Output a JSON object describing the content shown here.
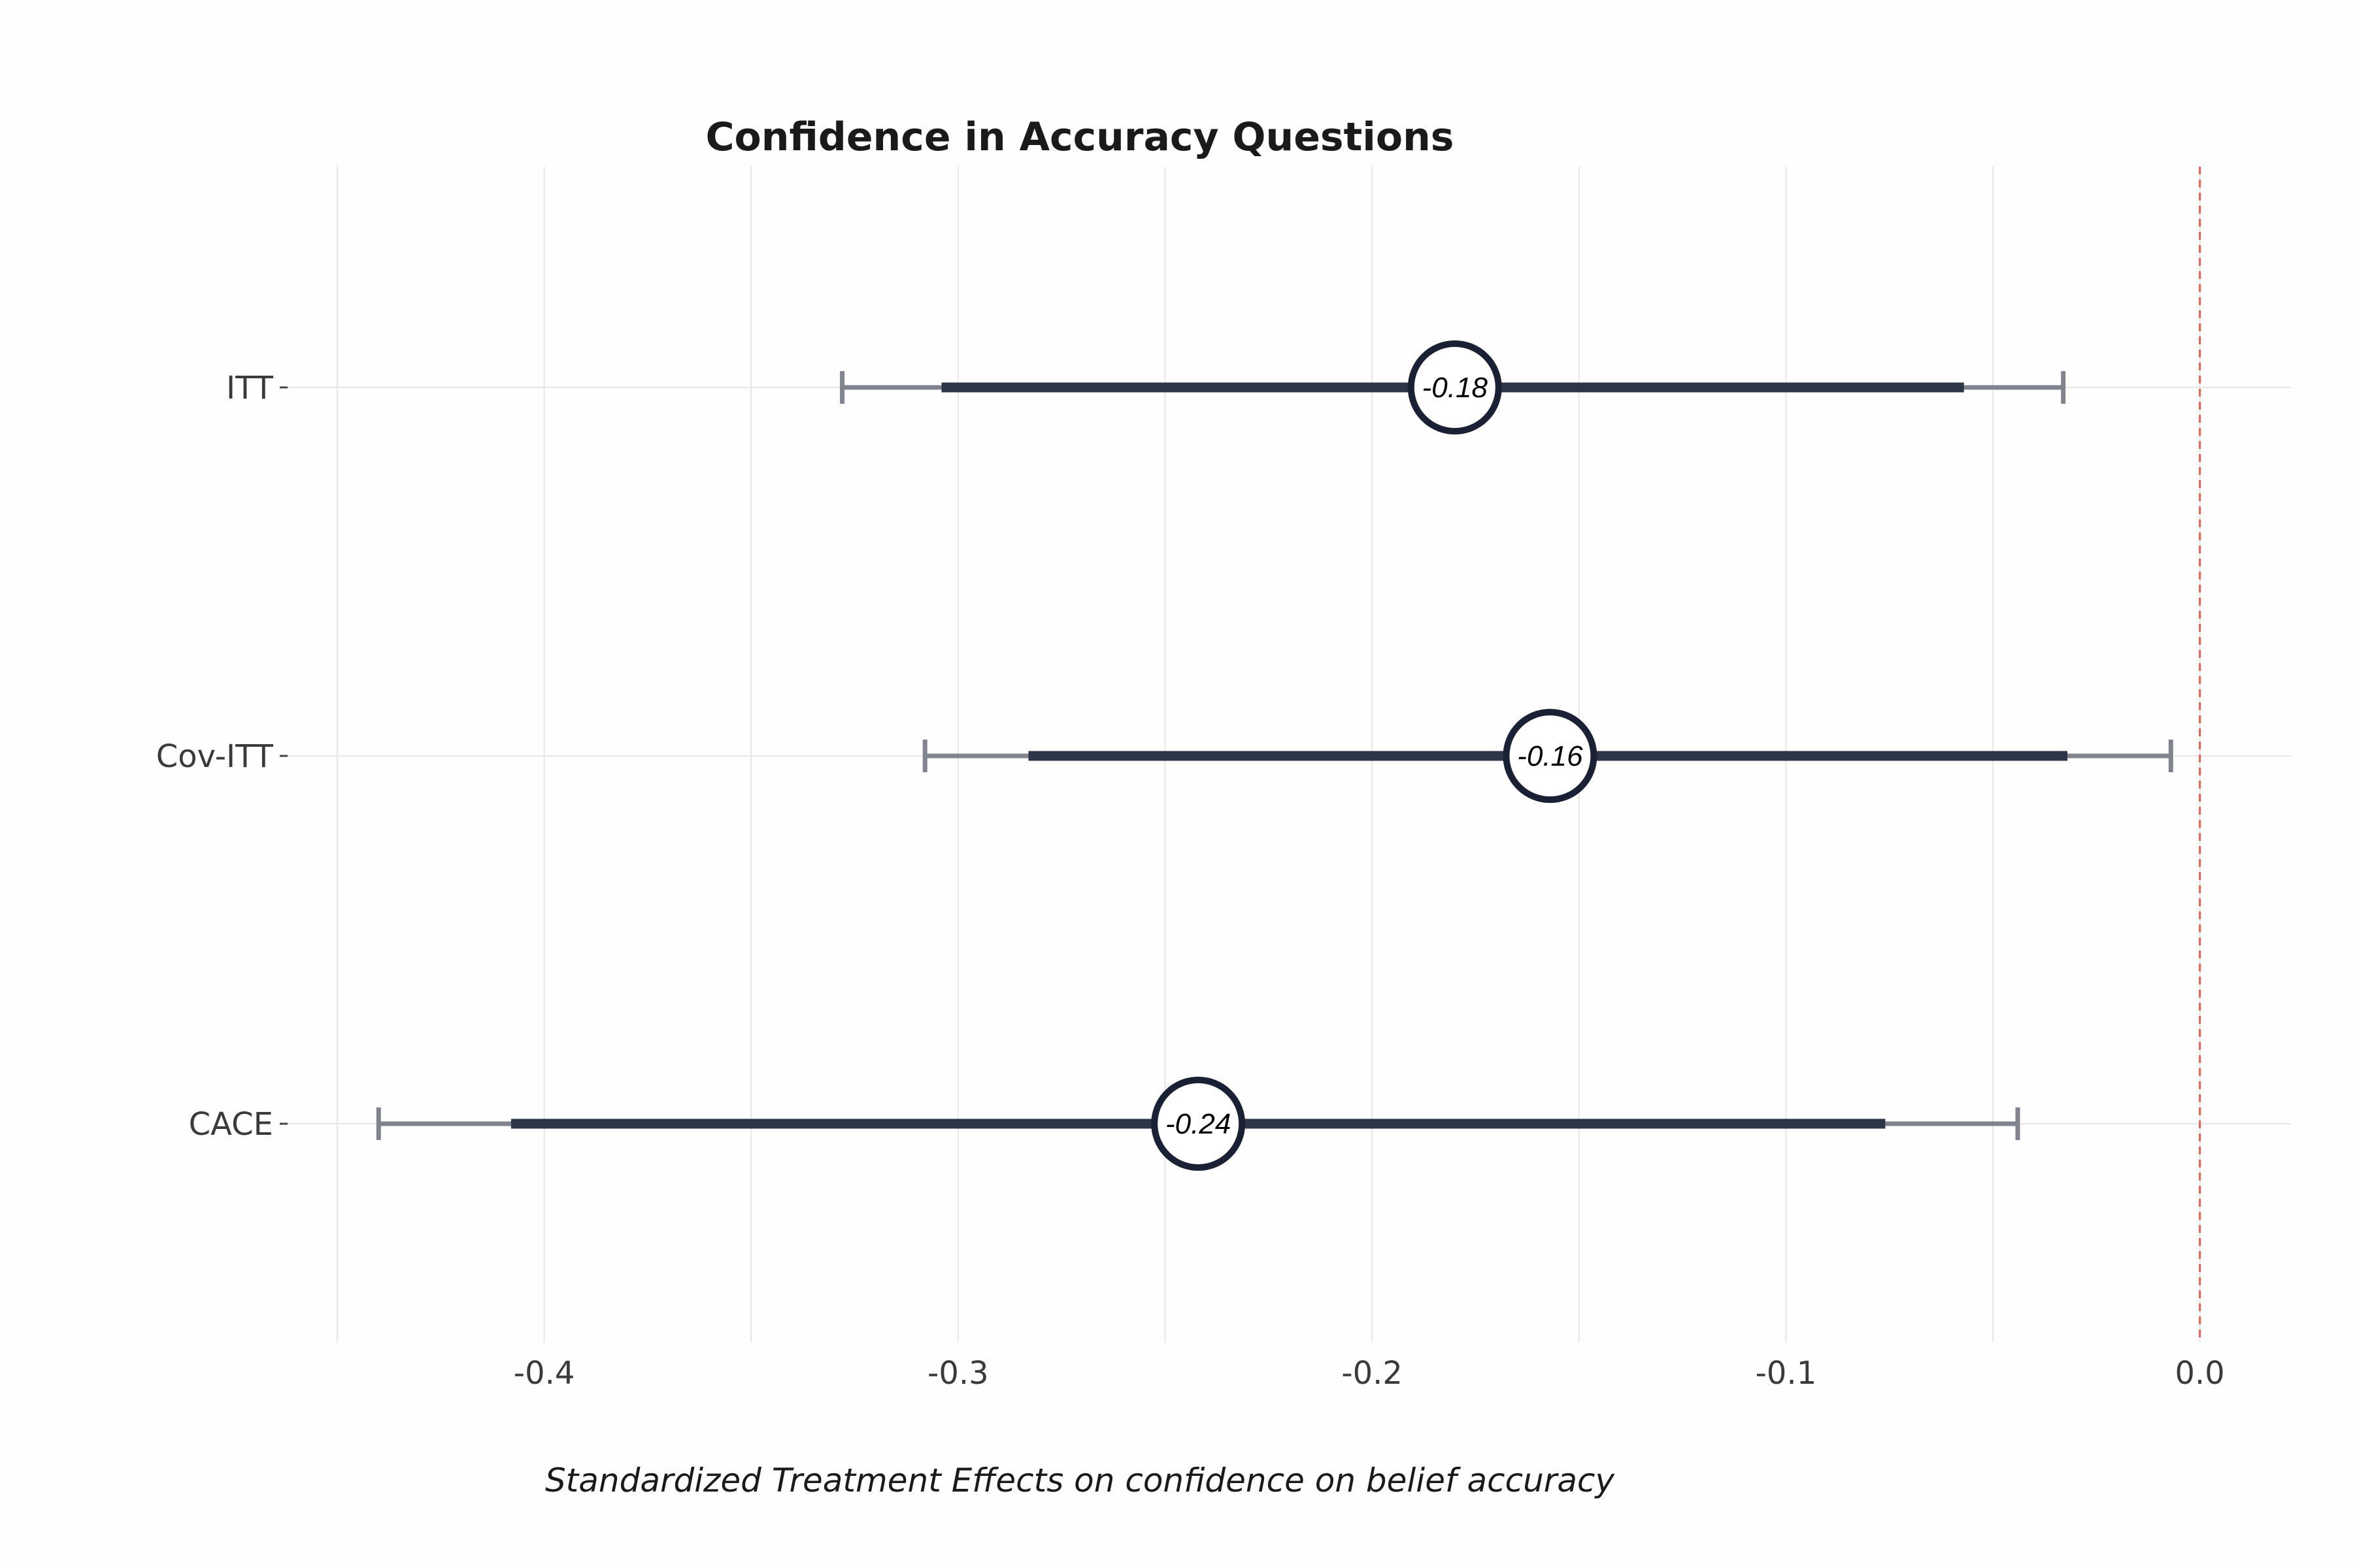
{
  "chart_data": {
    "type": "forest",
    "title": "Confidence in Accuracy Questions",
    "xlabel": "Standardized Treatment Effects on confidence on belief accuracy",
    "ylabel": "",
    "xlim": [
      -0.462,
      0.022
    ],
    "xticks": [
      -0.4,
      -0.3,
      -0.2,
      -0.1,
      0.0
    ],
    "xtick_labels": [
      "-0.4",
      "-0.3",
      "-0.2",
      "-0.1",
      "0.0"
    ],
    "minor_xticks": [
      -0.45,
      -0.35,
      -0.25,
      -0.15,
      -0.05
    ],
    "reference_line": {
      "x": 0.0,
      "style": "dashed",
      "color": "#e06050"
    },
    "grid": true,
    "series": [
      {
        "name": "ITT",
        "label": "ITT",
        "estimate": -0.18,
        "estimate_label": "-0.18",
        "ci90": [
          -0.304,
          -0.057
        ],
        "ci95": [
          -0.328,
          -0.033
        ]
      },
      {
        "name": "Cov-ITT",
        "label": "Cov-ITT",
        "estimate": -0.157,
        "estimate_label": "-0.16",
        "ci90": [
          -0.283,
          -0.032
        ],
        "ci95": [
          -0.308,
          -0.007
        ]
      },
      {
        "name": "CACE",
        "label": "CACE",
        "estimate": -0.242,
        "estimate_label": "-0.24",
        "ci90": [
          -0.408,
          -0.076
        ],
        "ci95": [
          -0.44,
          -0.044
        ]
      }
    ],
    "colors": {
      "inner_ci": "#2d3548",
      "outer_ci": "#80848f",
      "marker_stroke": "#1b2135",
      "marker_fill": "#ffffff",
      "grid": "#e6e6e6"
    }
  }
}
